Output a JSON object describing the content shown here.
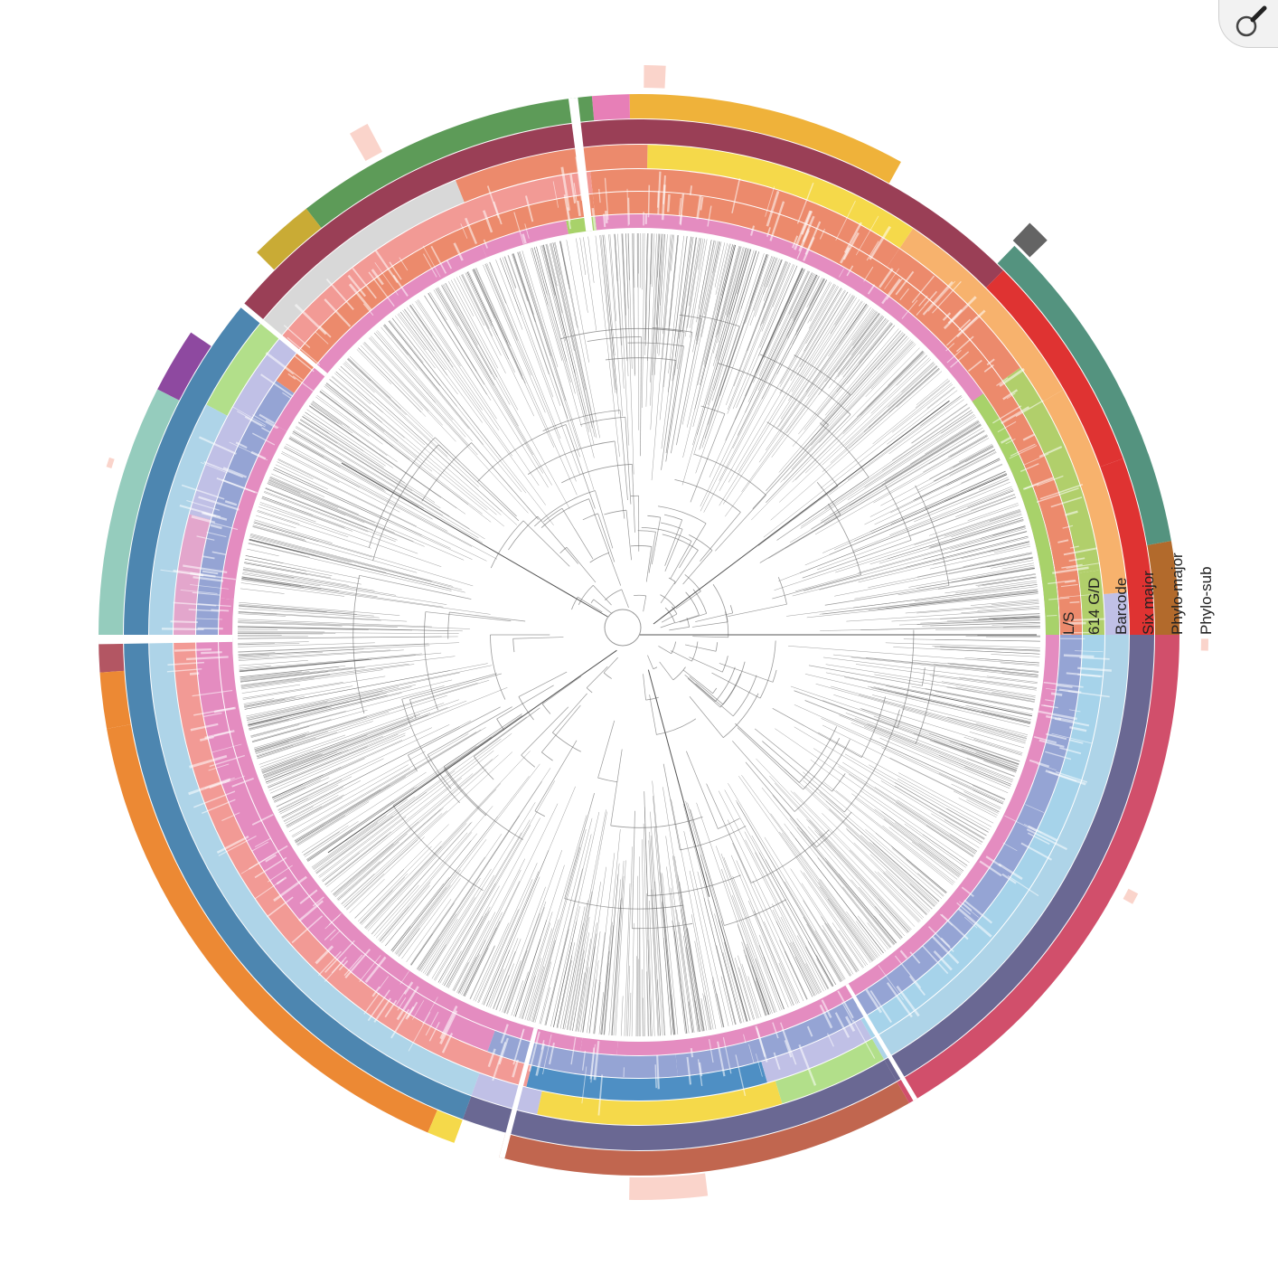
{
  "ring_labels": {
    "ls": "L/S",
    "gd614": "614 G/D",
    "barcode": "Barcode",
    "six_major": "Six major",
    "phylo_major": "Phylo-major",
    "phylo_sub": "Phylo-sub"
  },
  "toolbar": {
    "zoom_icon": "magnifier-icon"
  },
  "colors": {
    "ls": [
      "#f48a79",
      "#a8d26a"
    ],
    "gd614": [
      "#ec8a6c",
      "#95a4d4",
      "#e48cc0"
    ],
    "barcode": [
      "#a6d3ea",
      "#e3a6cc",
      "#f3ef9c",
      "#b1cf6b",
      "#4e8fc4",
      "#f29a95",
      "#c0c0e6"
    ],
    "six_major": [
      "#d8d8d8",
      "#f0b8d4",
      "#f5d94a",
      "#f7b26d",
      "#b2df8a",
      "#aed4e8"
    ],
    "phylo_major": [
      "#9a3f56",
      "#df3332",
      "#6a6893",
      "#4d86b0",
      "#b35663"
    ],
    "phylo_sub": [
      "#5d9b58",
      "#e77fb7",
      "#efb23a",
      "#646464",
      "#54937f",
      "#b26a2c",
      "#d14f6b",
      "#c1664f",
      "#ec8934",
      "#c9ab35",
      "#8e49a0",
      "#95ccbd"
    ]
  }
}
